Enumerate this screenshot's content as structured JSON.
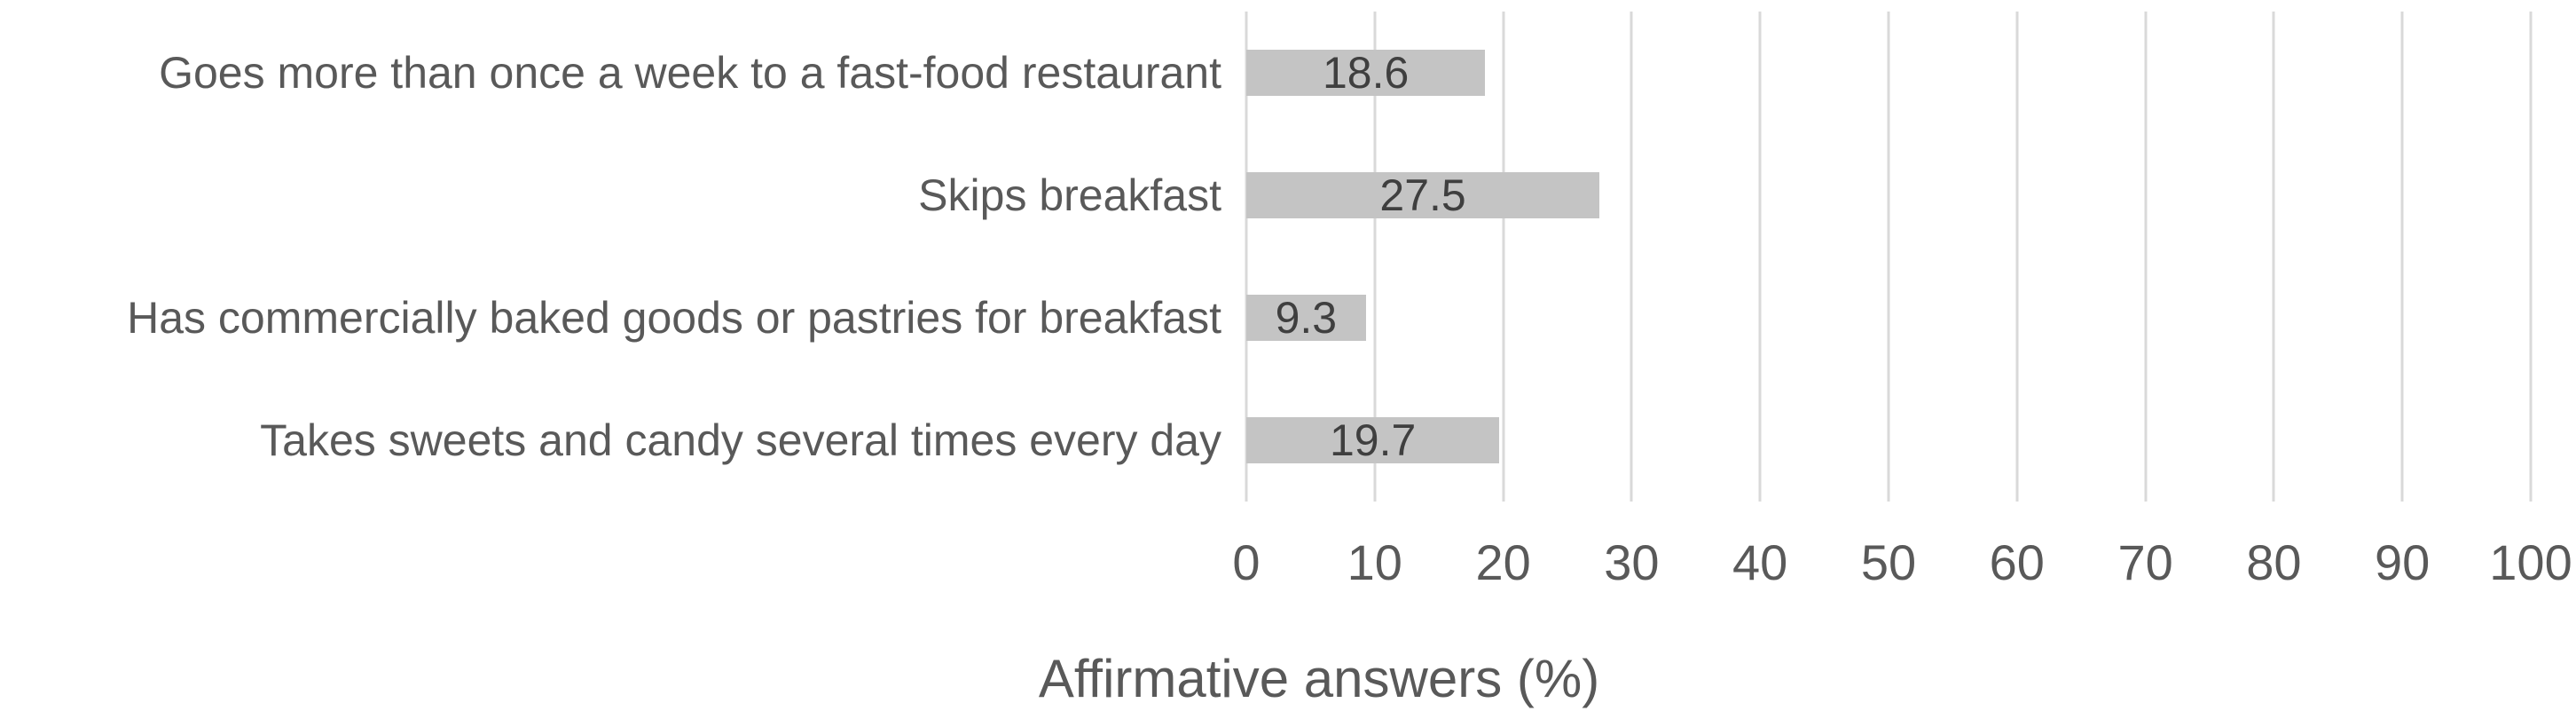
{
  "chart_data": {
    "type": "bar",
    "orientation": "horizontal",
    "title": "",
    "xlabel": "Affirmative answers (%)",
    "ylabel": "",
    "categories": [
      "Goes more than once a week to a fast-food restaurant",
      "Skips breakfast",
      "Has commercially baked goods or pastries for breakfast",
      "Takes sweets and candy several times every day"
    ],
    "values": [
      18.6,
      27.5,
      9.3,
      19.7
    ],
    "value_labels": [
      "18.6",
      "27.5",
      "9.3",
      "19.7"
    ],
    "xlim": [
      0,
      100
    ],
    "xticks": [
      0,
      10,
      20,
      30,
      40,
      50,
      60,
      70,
      80,
      90,
      100
    ],
    "grid": "vertical-only",
    "legend": "none",
    "colors": {
      "bar": "#c4c4c4",
      "gridline": "#d9d9d9",
      "axis_text": "#595959",
      "data_label_text": "#3f3f3f",
      "background": "#ffffff"
    }
  }
}
